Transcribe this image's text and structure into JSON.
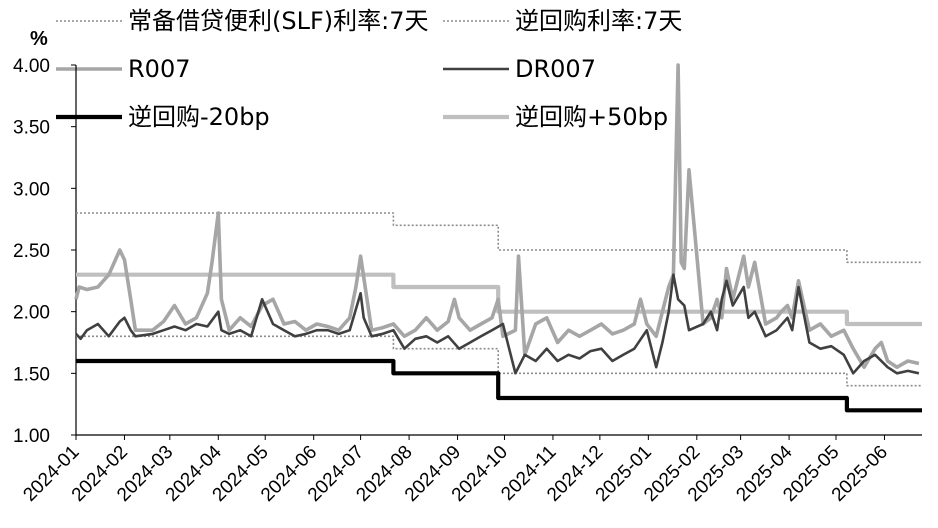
{
  "chart_data": {
    "type": "line",
    "title": "",
    "xlabel": "",
    "ylabel": "%",
    "ylim": [
      1.0,
      4.0
    ],
    "yticks": [
      "4.00",
      "3.50",
      "3.00",
      "2.50",
      "2.00",
      "1.50",
      "1.00"
    ],
    "xticks": [
      "2024-01",
      "2024-02",
      "2024-03",
      "2024-04",
      "2024-05",
      "2024-06",
      "2024-07",
      "2024-08",
      "2024-09",
      "2024-10",
      "2024-11",
      "2024-12",
      "2025-01",
      "2025-02",
      "2025-03",
      "2025-04",
      "2025-05",
      "2025-06"
    ],
    "xlim": [
      "2024-01-01",
      "2025-06-25"
    ],
    "grid": false,
    "legend_position": "top",
    "series": [
      {
        "name": "常备借贷便利(SLF)利率:7天",
        "style": "dotted",
        "color": "#8c8c8c",
        "x": [
          "2024-01-01",
          "2024-07-22",
          "2024-07-22",
          "2024-09-27",
          "2024-09-27",
          "2025-05-08",
          "2025-05-08",
          "2025-06-25"
        ],
        "values": [
          2.8,
          2.8,
          2.7,
          2.7,
          2.5,
          2.5,
          2.4,
          2.4
        ]
      },
      {
        "name": "逆回购利率:7天",
        "style": "dotted",
        "color": "#8c8c8c",
        "x": [
          "2024-01-01",
          "2024-07-22",
          "2024-07-22",
          "2024-09-27",
          "2024-09-27",
          "2025-05-08",
          "2025-05-08",
          "2025-06-25"
        ],
        "values": [
          1.8,
          1.8,
          1.7,
          1.7,
          1.5,
          1.5,
          1.4,
          1.4
        ]
      },
      {
        "name": "R007",
        "style": "solid",
        "color": "#a6a6a6",
        "x": [
          "2024-01-01",
          "2024-01-03",
          "2024-01-08",
          "2024-01-15",
          "2024-01-22",
          "2024-01-29",
          "2024-02-01",
          "2024-02-05",
          "2024-02-08",
          "2024-02-19",
          "2024-02-26",
          "2024-03-04",
          "2024-03-11",
          "2024-03-18",
          "2024-03-25",
          "2024-03-28",
          "2024-04-01",
          "2024-04-03",
          "2024-04-08",
          "2024-04-15",
          "2024-04-22",
          "2024-04-29",
          "2024-05-06",
          "2024-05-13",
          "2024-05-20",
          "2024-05-27",
          "2024-06-03",
          "2024-06-10",
          "2024-06-17",
          "2024-06-24",
          "2024-06-28",
          "2024-07-01",
          "2024-07-08",
          "2024-07-15",
          "2024-07-22",
          "2024-07-29",
          "2024-08-05",
          "2024-08-12",
          "2024-08-19",
          "2024-08-26",
          "2024-08-30",
          "2024-09-02",
          "2024-09-09",
          "2024-09-16",
          "2024-09-23",
          "2024-09-27",
          "2024-09-30",
          "2024-10-08",
          "2024-10-10",
          "2024-10-14",
          "2024-10-21",
          "2024-10-28",
          "2024-11-04",
          "2024-11-11",
          "2024-11-18",
          "2024-11-25",
          "2024-12-02",
          "2024-12-09",
          "2024-12-16",
          "2024-12-23",
          "2024-12-27",
          "2024-12-31",
          "2025-01-06",
          "2025-01-10",
          "2025-01-14",
          "2025-01-17",
          "2025-01-20",
          "2025-01-22",
          "2025-01-24",
          "2025-01-27",
          "2025-02-05",
          "2025-02-10",
          "2025-02-14",
          "2025-02-17",
          "2025-02-20",
          "2025-02-24",
          "2025-03-03",
          "2025-03-06",
          "2025-03-10",
          "2025-03-17",
          "2025-03-24",
          "2025-03-27",
          "2025-03-31",
          "2025-04-03",
          "2025-04-07",
          "2025-04-14",
          "2025-04-21",
          "2025-04-28",
          "2025-05-06",
          "2025-05-12",
          "2025-05-19",
          "2025-05-26",
          "2025-05-30",
          "2025-06-03",
          "2025-06-09",
          "2025-06-16",
          "2025-06-23"
        ],
        "values": [
          2.1,
          2.2,
          2.18,
          2.2,
          2.3,
          2.5,
          2.42,
          2.1,
          1.85,
          1.85,
          1.92,
          2.05,
          1.9,
          1.95,
          2.15,
          2.4,
          2.8,
          2.1,
          1.85,
          1.95,
          1.88,
          2.05,
          2.1,
          1.9,
          1.92,
          1.85,
          1.9,
          1.88,
          1.85,
          1.95,
          2.2,
          2.45,
          1.85,
          1.87,
          1.9,
          1.8,
          1.85,
          1.95,
          1.85,
          1.92,
          2.1,
          1.95,
          1.85,
          1.9,
          1.95,
          2.1,
          1.8,
          1.85,
          2.45,
          1.65,
          1.9,
          1.95,
          1.75,
          1.85,
          1.8,
          1.85,
          1.9,
          1.82,
          1.85,
          1.9,
          2.1,
          1.9,
          1.8,
          2.0,
          2.2,
          2.3,
          4.0,
          2.4,
          2.35,
          3.15,
          1.9,
          1.95,
          2.1,
          1.95,
          2.35,
          2.1,
          2.45,
          2.2,
          2.4,
          1.9,
          1.95,
          2.0,
          2.05,
          1.95,
          2.25,
          1.85,
          1.9,
          1.8,
          1.85,
          1.7,
          1.55,
          1.7,
          1.75,
          1.6,
          1.55,
          1.6,
          1.58
        ]
      },
      {
        "name": "DR007",
        "style": "solid",
        "color": "#404040",
        "x": [
          "2024-01-01",
          "2024-01-04",
          "2024-01-08",
          "2024-01-15",
          "2024-01-22",
          "2024-01-29",
          "2024-02-01",
          "2024-02-05",
          "2024-02-08",
          "2024-02-19",
          "2024-02-26",
          "2024-03-04",
          "2024-03-11",
          "2024-03-18",
          "2024-03-25",
          "2024-04-01",
          "2024-04-03",
          "2024-04-08",
          "2024-04-15",
          "2024-04-22",
          "2024-04-29",
          "2024-05-06",
          "2024-05-13",
          "2024-05-20",
          "2024-05-27",
          "2024-06-03",
          "2024-06-10",
          "2024-06-17",
          "2024-06-24",
          "2024-07-01",
          "2024-07-03",
          "2024-07-08",
          "2024-07-15",
          "2024-07-22",
          "2024-07-29",
          "2024-08-05",
          "2024-08-12",
          "2024-08-19",
          "2024-08-26",
          "2024-09-02",
          "2024-09-09",
          "2024-09-16",
          "2024-09-23",
          "2024-09-30",
          "2024-10-08",
          "2024-10-14",
          "2024-10-21",
          "2024-10-28",
          "2024-11-04",
          "2024-11-11",
          "2024-11-18",
          "2024-11-25",
          "2024-12-02",
          "2024-12-09",
          "2024-12-16",
          "2024-12-23",
          "2024-12-31",
          "2025-01-06",
          "2025-01-10",
          "2025-01-14",
          "2025-01-17",
          "2025-01-20",
          "2025-01-24",
          "2025-01-27",
          "2025-02-05",
          "2025-02-10",
          "2025-02-14",
          "2025-02-17",
          "2025-02-20",
          "2025-02-24",
          "2025-03-03",
          "2025-03-06",
          "2025-03-10",
          "2025-03-17",
          "2025-03-24",
          "2025-03-31",
          "2025-04-03",
          "2025-04-07",
          "2025-04-14",
          "2025-04-21",
          "2025-04-28",
          "2025-05-06",
          "2025-05-12",
          "2025-05-19",
          "2025-05-26",
          "2025-06-03",
          "2025-06-09",
          "2025-06-16",
          "2025-06-23"
        ],
        "values": [
          1.82,
          1.78,
          1.85,
          1.9,
          1.8,
          1.92,
          1.95,
          1.85,
          1.8,
          1.82,
          1.85,
          1.88,
          1.85,
          1.9,
          1.88,
          2.0,
          1.85,
          1.82,
          1.85,
          1.8,
          2.1,
          1.9,
          1.85,
          1.8,
          1.82,
          1.85,
          1.85,
          1.82,
          1.85,
          2.15,
          1.95,
          1.8,
          1.82,
          1.85,
          1.7,
          1.78,
          1.8,
          1.75,
          1.8,
          1.7,
          1.75,
          1.8,
          1.85,
          1.9,
          1.5,
          1.65,
          1.6,
          1.7,
          1.6,
          1.65,
          1.62,
          1.68,
          1.7,
          1.6,
          1.65,
          1.7,
          1.85,
          1.55,
          1.75,
          2.0,
          2.3,
          2.1,
          2.05,
          1.85,
          1.9,
          2.0,
          1.85,
          2.1,
          2.25,
          2.05,
          2.2,
          1.95,
          2.0,
          1.8,
          1.85,
          1.95,
          1.85,
          2.2,
          1.75,
          1.7,
          1.72,
          1.65,
          1.5,
          1.6,
          1.65,
          1.55,
          1.5,
          1.52,
          1.5
        ]
      },
      {
        "name": "逆回购-20bp",
        "style": "solid",
        "color": "#000000",
        "x": [
          "2024-01-01",
          "2024-07-22",
          "2024-07-22",
          "2024-09-27",
          "2024-09-27",
          "2025-05-08",
          "2025-05-08",
          "2025-06-25"
        ],
        "values": [
          1.6,
          1.6,
          1.5,
          1.5,
          1.3,
          1.3,
          1.2,
          1.2
        ]
      },
      {
        "name": "逆回购+50bp",
        "style": "solid",
        "color": "#bfbfbf",
        "x": [
          "2024-01-01",
          "2024-07-22",
          "2024-07-22",
          "2024-09-27",
          "2024-09-27",
          "2025-05-08",
          "2025-05-08",
          "2025-06-25"
        ],
        "values": [
          2.3,
          2.3,
          2.2,
          2.2,
          2.0,
          2.0,
          1.9,
          1.9
        ]
      }
    ]
  }
}
